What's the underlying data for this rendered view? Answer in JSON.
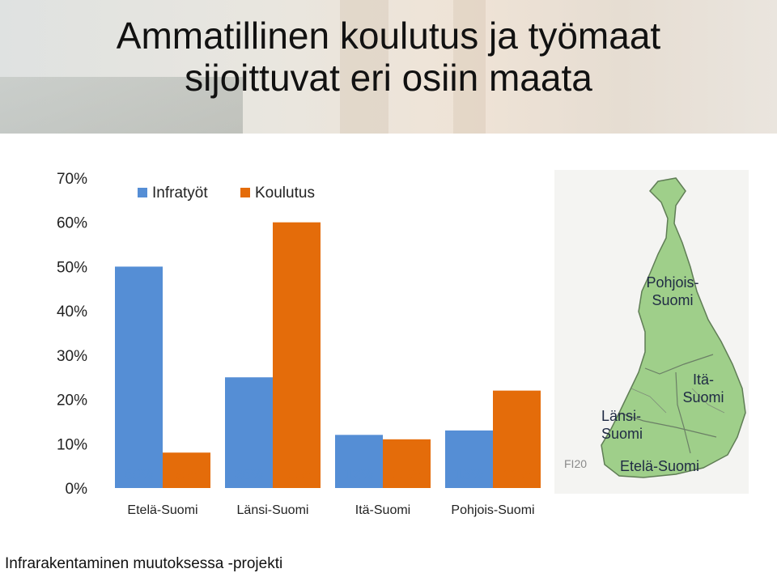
{
  "title": {
    "line1": "Ammatillinen koulutus ja työmaat",
    "line2": "sijoittuvat eri osiin maata"
  },
  "chart_data": {
    "type": "bar",
    "title": "",
    "xlabel": "",
    "ylabel": "",
    "ylim": [
      0,
      70
    ],
    "yticks": [
      "0%",
      "10%",
      "20%",
      "30%",
      "40%",
      "50%",
      "60%",
      "70%"
    ],
    "categories": [
      "Etelä-Suomi",
      "Länsi-Suomi",
      "Itä-Suomi",
      "Pohjois-Suomi"
    ],
    "series": [
      {
        "name": "Infratyöt",
        "color": "#558ed5",
        "values": [
          50,
          25,
          12,
          13
        ],
        "labels": [
          "50%",
          "25%",
          "12%",
          "13%"
        ]
      },
      {
        "name": "Koulutus",
        "color": "#e46c0a",
        "values": [
          8,
          60,
          11,
          22
        ],
        "labels": [
          "8%",
          "60%",
          "11%",
          "22%"
        ]
      }
    ],
    "legend": "top-left",
    "grid": false
  },
  "map": {
    "labels": {
      "north": "Pohjois-\nSuomi",
      "west": "Länsi-\nSuomi",
      "east": "Itä-\nSuomi",
      "south": "Etelä-Suomi"
    },
    "land_color": "#9fcf8a",
    "stamp": "FI20"
  },
  "footer": {
    "text": "Infrarakentaminen muutoksessa -projekti"
  }
}
